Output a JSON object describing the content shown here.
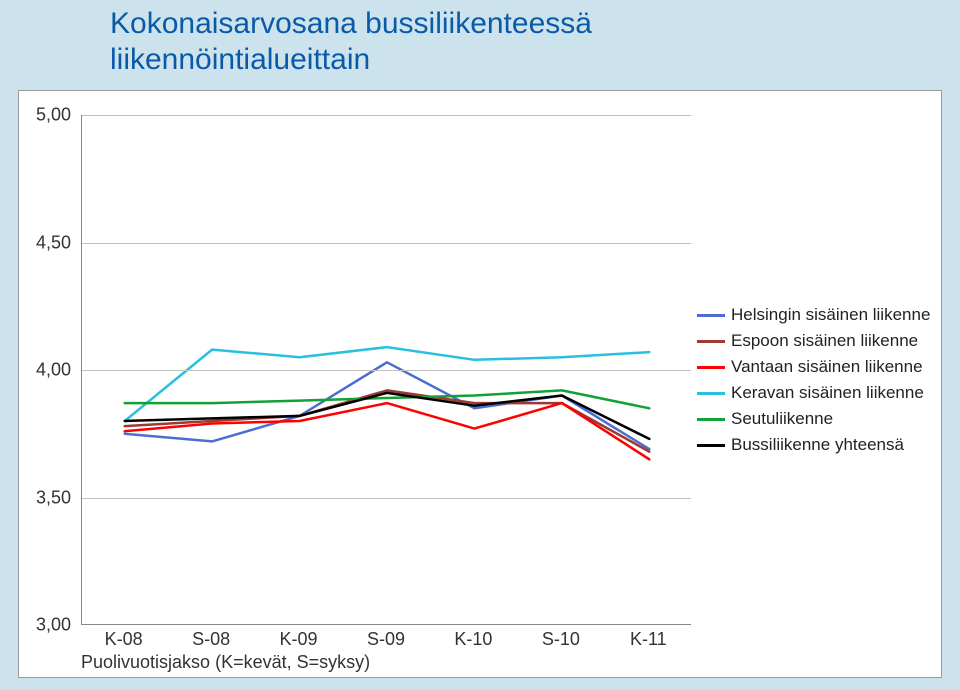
{
  "title_line1": "Kokonaisarvosana bussiliikenteessä",
  "title_line2": "liikennöintialueittain",
  "xlabel": "Puolivuotisjakso (K=kevät, S=syksy)",
  "chart": {
    "type": "line",
    "categories": [
      "K-08",
      "S-08",
      "K-09",
      "S-09",
      "K-10",
      "S-10",
      "K-11"
    ],
    "ylim": [
      3.0,
      5.0
    ],
    "ytick_step": 0.5,
    "yticks": [
      "3,00",
      "3,50",
      "4,00",
      "4,50",
      "5,00"
    ],
    "background_color": "#ffffff",
    "grid_color": "#bfbfbf",
    "line_width": 2.5,
    "series": [
      {
        "name": "Helsingin sisäinen liikenne",
        "color": "#4a6fd0",
        "values": [
          3.75,
          3.72,
          3.82,
          4.03,
          3.85,
          3.9,
          3.69
        ]
      },
      {
        "name": "Espoon sisäinen liikenne",
        "color": "#9c3a33",
        "values": [
          3.78,
          3.8,
          3.82,
          3.92,
          3.87,
          3.87,
          3.68
        ]
      },
      {
        "name": "Vantaan sisäinen liikenne",
        "color": "#ff0000",
        "values": [
          3.76,
          3.79,
          3.8,
          3.87,
          3.77,
          3.87,
          3.65
        ]
      },
      {
        "name": "Keravan sisäinen liikenne",
        "color": "#28c0de",
        "values": [
          3.8,
          4.08,
          4.05,
          4.09,
          4.04,
          4.05,
          4.07
        ]
      },
      {
        "name": "Seutuliikenne",
        "color": "#12a037",
        "values": [
          3.87,
          3.87,
          3.88,
          3.89,
          3.9,
          3.92,
          3.85
        ]
      },
      {
        "name": "Bussiliikenne yhteensä",
        "color": "#000000",
        "values": [
          3.8,
          3.81,
          3.82,
          3.91,
          3.86,
          3.9,
          3.73
        ]
      }
    ]
  },
  "page_background": "#cce3ee",
  "title_color": "#0b5aa8",
  "title_fontsize": 30,
  "axis_fontsize": 18,
  "legend_fontsize": 17
}
